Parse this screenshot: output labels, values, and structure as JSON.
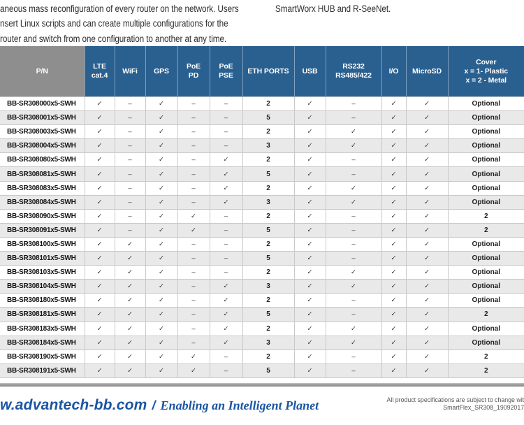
{
  "intro": {
    "left_lines": [
      "aneous mass reconfiguration of every router on the network. Users",
      "nsert Linux scripts and can create multiple configurations for the",
      "router and switch from one configuration to another at any time."
    ],
    "right_text": "SmartWorx HUB and R-SeeNet."
  },
  "table": {
    "headers": [
      {
        "key": "pn",
        "lines": [
          "P/N"
        ]
      },
      {
        "key": "lte-cat4",
        "lines": [
          "LTE",
          "cat.4"
        ]
      },
      {
        "key": "wifi",
        "lines": [
          "WiFi"
        ]
      },
      {
        "key": "gps",
        "lines": [
          "GPS"
        ]
      },
      {
        "key": "poe-pd",
        "lines": [
          "PoE",
          "PD"
        ]
      },
      {
        "key": "poe-pse",
        "lines": [
          "PoE",
          "PSE"
        ]
      },
      {
        "key": "eth-ports",
        "lines": [
          "ETH PORTS"
        ]
      },
      {
        "key": "usb",
        "lines": [
          "USB"
        ]
      },
      {
        "key": "rs232-rs485-422",
        "lines": [
          "RS232",
          "RS485/422"
        ]
      },
      {
        "key": "io",
        "lines": [
          "I/O"
        ]
      },
      {
        "key": "microsd",
        "lines": [
          "MicroSD"
        ]
      },
      {
        "key": "cover",
        "lines": [
          "Cover",
          "x = 1- Plastic",
          "x = 2 - Metal"
        ]
      }
    ],
    "rows": [
      {
        "pn": "BB-SR308000x5-SWH",
        "cells": [
          "✓",
          "–",
          "✓",
          "–",
          "–",
          "2",
          "✓",
          "–",
          "✓",
          "✓",
          "Optional"
        ]
      },
      {
        "pn": "BB-SR308001x5-SWH",
        "cells": [
          "✓",
          "–",
          "✓",
          "–",
          "–",
          "5",
          "✓",
          "–",
          "✓",
          "✓",
          "Optional"
        ]
      },
      {
        "pn": "BB-SR308003x5-SWH",
        "cells": [
          "✓",
          "–",
          "✓",
          "–",
          "–",
          "2",
          "✓",
          "✓",
          "✓",
          "✓",
          "Optional"
        ]
      },
      {
        "pn": "BB-SR308004x5-SWH",
        "cells": [
          "✓",
          "–",
          "✓",
          "–",
          "–",
          "3",
          "✓",
          "✓",
          "✓",
          "✓",
          "Optional"
        ]
      },
      {
        "pn": "BB-SR308080x5-SWH",
        "cells": [
          "✓",
          "–",
          "✓",
          "–",
          "✓",
          "2",
          "✓",
          "–",
          "✓",
          "✓",
          "Optional"
        ]
      },
      {
        "pn": "BB-SR308081x5-SWH",
        "cells": [
          "✓",
          "–",
          "✓",
          "–",
          "✓",
          "5",
          "✓",
          "–",
          "✓",
          "✓",
          "Optional"
        ]
      },
      {
        "pn": "BB-SR308083x5-SWH",
        "cells": [
          "✓",
          "–",
          "✓",
          "–",
          "✓",
          "2",
          "✓",
          "✓",
          "✓",
          "✓",
          "Optional"
        ]
      },
      {
        "pn": "BB-SR308084x5-SWH",
        "cells": [
          "✓",
          "–",
          "✓",
          "–",
          "✓",
          "3",
          "✓",
          "✓",
          "✓",
          "✓",
          "Optional"
        ]
      },
      {
        "pn": "BB-SR308090x5-SWH",
        "cells": [
          "✓",
          "–",
          "✓",
          "✓",
          "–",
          "2",
          "✓",
          "–",
          "✓",
          "✓",
          "2"
        ]
      },
      {
        "pn": "BB-SR308091x5-SWH",
        "cells": [
          "✓",
          "–",
          "✓",
          "✓",
          "–",
          "5",
          "✓",
          "–",
          "✓",
          "✓",
          "2"
        ]
      },
      {
        "pn": "BB-SR308100x5-SWH",
        "cells": [
          "✓",
          "✓",
          "✓",
          "–",
          "–",
          "2",
          "✓",
          "–",
          "✓",
          "✓",
          "Optional"
        ]
      },
      {
        "pn": "BB-SR308101x5-SWH",
        "cells": [
          "✓",
          "✓",
          "✓",
          "–",
          "–",
          "5",
          "✓",
          "–",
          "✓",
          "✓",
          "Optional"
        ]
      },
      {
        "pn": "BB-SR308103x5-SWH",
        "cells": [
          "✓",
          "✓",
          "✓",
          "–",
          "–",
          "2",
          "✓",
          "✓",
          "✓",
          "✓",
          "Optional"
        ]
      },
      {
        "pn": "BB-SR308104x5-SWH",
        "cells": [
          "✓",
          "✓",
          "✓",
          "–",
          "✓",
          "3",
          "✓",
          "✓",
          "✓",
          "✓",
          "Optional"
        ]
      },
      {
        "pn": "BB-SR308180x5-SWH",
        "cells": [
          "✓",
          "✓",
          "✓",
          "–",
          "✓",
          "2",
          "✓",
          "–",
          "✓",
          "✓",
          "Optional"
        ]
      },
      {
        "pn": "BB-SR308181x5-SWH",
        "cells": [
          "✓",
          "✓",
          "✓",
          "–",
          "✓",
          "5",
          "✓",
          "–",
          "✓",
          "✓",
          "2"
        ]
      },
      {
        "pn": "BB-SR308183x5-SWH",
        "cells": [
          "✓",
          "✓",
          "✓",
          "–",
          "✓",
          "2",
          "✓",
          "✓",
          "✓",
          "✓",
          "Optional"
        ]
      },
      {
        "pn": "BB-SR308184x5-SWH",
        "cells": [
          "✓",
          "✓",
          "✓",
          "–",
          "✓",
          "3",
          "✓",
          "✓",
          "✓",
          "✓",
          "Optional"
        ]
      },
      {
        "pn": "BB-SR308190x5-SWH",
        "cells": [
          "✓",
          "✓",
          "✓",
          "✓",
          "–",
          "2",
          "✓",
          "–",
          "✓",
          "✓",
          "2"
        ]
      },
      {
        "pn": "BB-SR308191x5-SWH",
        "cells": [
          "✓",
          "✓",
          "✓",
          "✓",
          "–",
          "5",
          "✓",
          "–",
          "✓",
          "✓",
          "2"
        ]
      }
    ]
  },
  "footer": {
    "website": "w.advantech-bb.com",
    "separator": "/",
    "tagline": "Enabling an Intelligent Planet",
    "note_line1": "All product specifications are subject to change with",
    "note_line2": "SmartFlex_SR308_19092017d"
  },
  "colors": {
    "header_blue": "#2a6090",
    "header_gray": "#8e8e8e",
    "row_alt_gray": "#e9e9e9",
    "cell_border": "#c9c9c9",
    "footer_blue": "#1b55a2"
  }
}
